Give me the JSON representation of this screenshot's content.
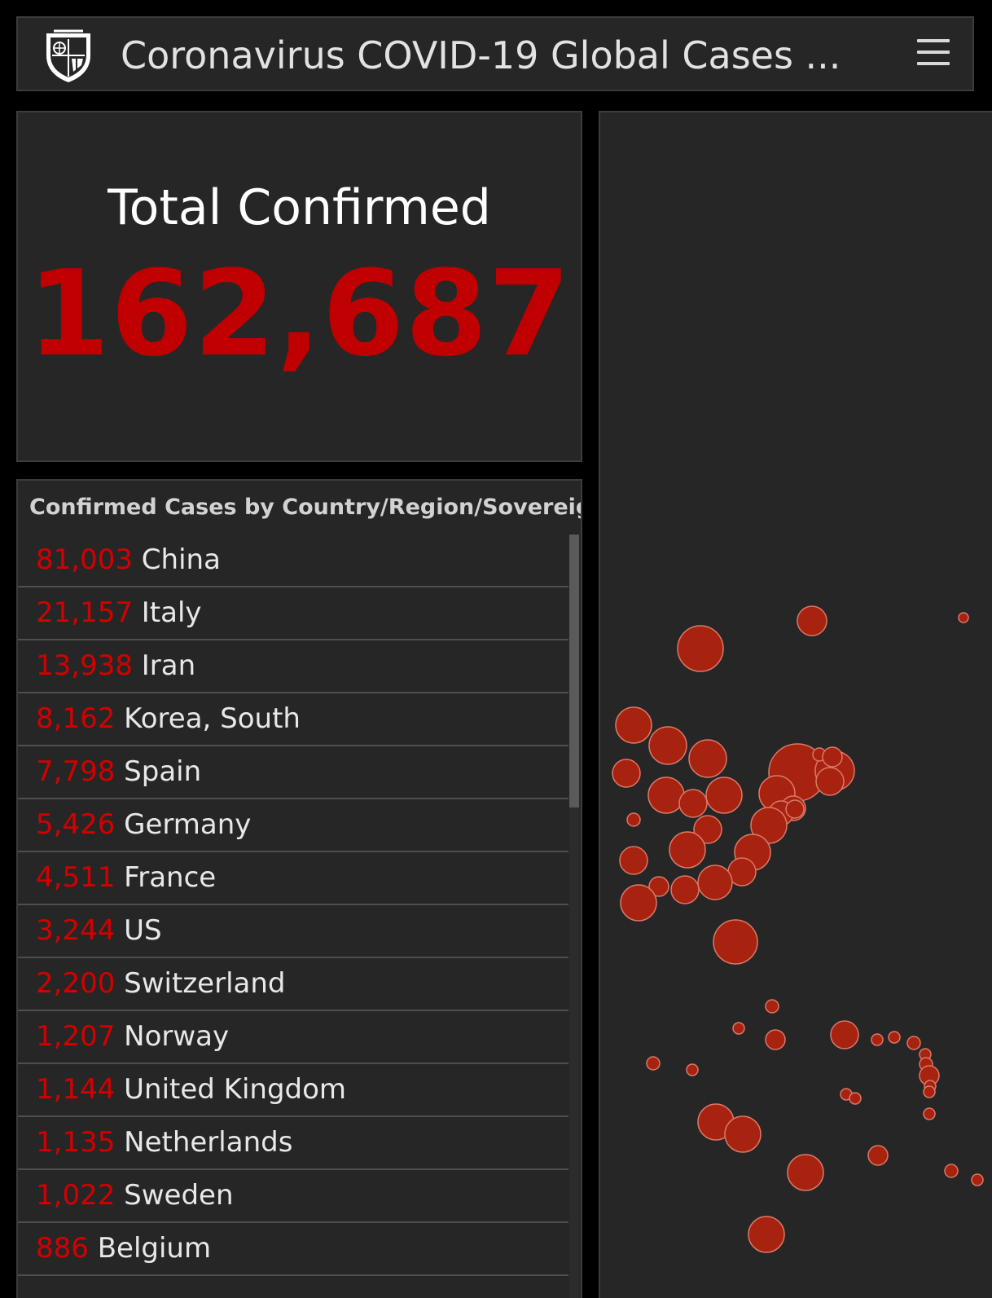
{
  "header": {
    "title": "Coronavirus COVID-19 Global Cases ...",
    "logo_icon": "university-shield-logo-icon",
    "menu_icon": "hamburger-menu-icon"
  },
  "total": {
    "label": "Total Confirmed",
    "value": "162,687",
    "value_color": "#c00000"
  },
  "list": {
    "title": "Confirmed Cases by Country/Region/Sovereignty",
    "rows": [
      {
        "count": "81,003",
        "country": "China"
      },
      {
        "count": "21,157",
        "country": "Italy"
      },
      {
        "count": "13,938",
        "country": "Iran"
      },
      {
        "count": "8,162",
        "country": "Korea, South"
      },
      {
        "count": "7,798",
        "country": "Spain"
      },
      {
        "count": "5,426",
        "country": "Germany"
      },
      {
        "count": "4,511",
        "country": "France"
      },
      {
        "count": "3,244",
        "country": "US"
      },
      {
        "count": "2,200",
        "country": "Switzerland"
      },
      {
        "count": "1,207",
        "country": "Norway"
      },
      {
        "count": "1,144",
        "country": "United Kingdom"
      },
      {
        "count": "1,135",
        "country": "Netherlands"
      },
      {
        "count": "1,022",
        "country": "Sweden"
      },
      {
        "count": "886",
        "country": "Belgium"
      }
    ]
  },
  "map": {
    "marker_color": "#a7220f",
    "marker_outline": "#d9796a",
    "background": "#262626"
  }
}
